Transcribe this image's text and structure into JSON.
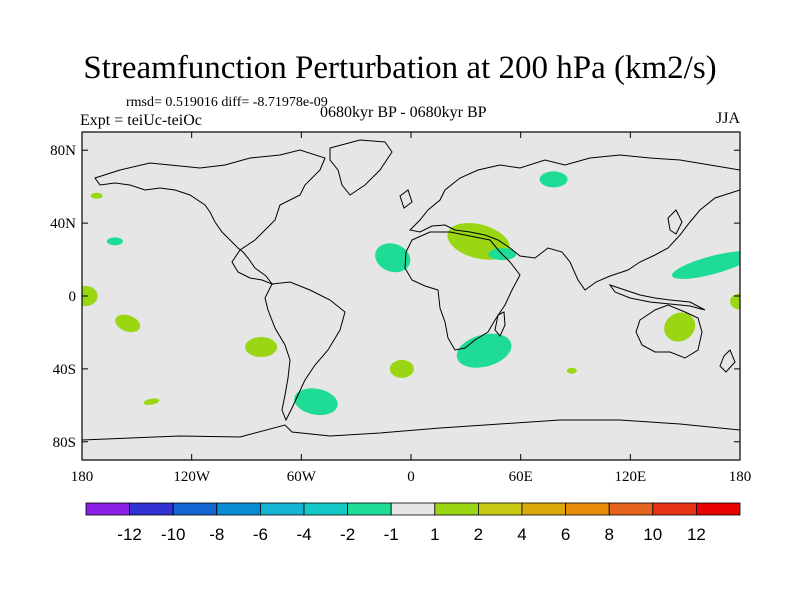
{
  "chart_data": {
    "type": "heatmap",
    "title": "Streamfunction Perturbation at 200 hPa (km2/s)",
    "stats": "rmsd= 0.519016 diff= -8.71978e-09",
    "experiment": "Expt = teiUc-teiOc",
    "period": "0680kyr BP - 0680kyr BP",
    "season": "JJA",
    "x_ticks": [
      "180",
      "120W",
      "60W",
      "0",
      "60E",
      "120E",
      "180"
    ],
    "x_tick_values": [
      -180,
      -120,
      -60,
      0,
      60,
      120,
      180
    ],
    "y_ticks": [
      "80N",
      "40N",
      "0",
      "40S",
      "80S"
    ],
    "y_tick_values": [
      80,
      40,
      0,
      -40,
      -80
    ],
    "xlim": [
      -180,
      180
    ],
    "ylim": [
      -90,
      90
    ],
    "background_value_range": [
      -1,
      1
    ],
    "anomalies": [
      {
        "lon": -172,
        "lat": 55,
        "value": 1.5
      },
      {
        "lon": -162,
        "lat": 30,
        "value": -1.5
      },
      {
        "lon": -178,
        "lat": 0,
        "value": 1.5
      },
      {
        "lon": -155,
        "lat": -15,
        "value": 1.5
      },
      {
        "lon": -82,
        "lat": -28,
        "value": 1.5
      },
      {
        "lon": -142,
        "lat": -58,
        "value": 1.5
      },
      {
        "lon": -52,
        "lat": -58,
        "value": -1.5
      },
      {
        "lon": -5,
        "lat": -40,
        "value": 1.5
      },
      {
        "lon": -10,
        "lat": 21,
        "value": -1.5
      },
      {
        "lon": 37,
        "lat": 30,
        "value": 1.5
      },
      {
        "lon": 50,
        "lat": 23,
        "value": -1.5
      },
      {
        "lon": 78,
        "lat": 64,
        "value": -1.5
      },
      {
        "lon": 40,
        "lat": -30,
        "value": -1.5
      },
      {
        "lon": 88,
        "lat": -41,
        "value": 1.5
      },
      {
        "lon": 165,
        "lat": 17,
        "value": -1.5
      },
      {
        "lon": 147,
        "lat": -17,
        "value": 1.5
      },
      {
        "lon": 180,
        "lat": -3,
        "value": 1.5
      }
    ],
    "colorbar": {
      "labels": [
        "-12",
        "-10",
        "-8",
        "-6",
        "-4",
        "-2",
        "-1",
        "1",
        "2",
        "4",
        "6",
        "8",
        "10",
        "12"
      ],
      "colors": [
        "#8c1ee6",
        "#3232d2",
        "#1464d2",
        "#0a8cd2",
        "#14b4d2",
        "#14c8c8",
        "#1edc96",
        "#e6e6e6",
        "#9bd614",
        "#c8c814",
        "#dcaa0a",
        "#e68c0a",
        "#e6641e",
        "#e63214",
        "#e60000"
      ]
    }
  }
}
